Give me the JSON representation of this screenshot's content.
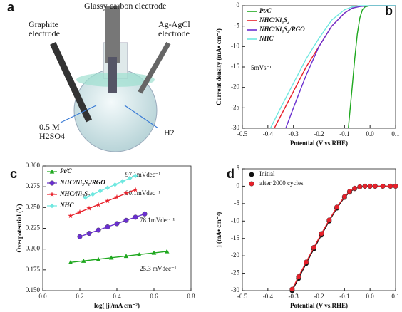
{
  "illustration": {
    "label": "a",
    "top_label": "Glassy carbon electrode",
    "left_label": "Graphite electrode",
    "right_label": "Ag-AgCl electrode",
    "solution_label": "0.5 M H2SO4",
    "gas_label": "H2"
  },
  "chart_data": [
    {
      "type": "line",
      "label": "b",
      "xlabel": "Potential (V vs.RHE)",
      "ylabel": "Current density (mA• cm⁻²)",
      "xlim": [
        -0.5,
        0.1
      ],
      "xticks": [
        -0.5,
        -0.4,
        -0.3,
        -0.2,
        -0.1,
        {
          "value": 0,
          "label": "0.0"
        },
        0.1
      ],
      "ylim": [
        -30,
        0
      ],
      "yticks": [
        -30,
        -25,
        -20,
        -15,
        -10,
        -5,
        0
      ],
      "annotations": [
        "5mVs⁻¹"
      ],
      "series": [
        {
          "name": "Pt/C",
          "color": "#1fa81f",
          "x": [
            -0.085,
            -0.07,
            -0.06,
            -0.05,
            -0.04,
            -0.03,
            -0.02,
            0,
            0.05,
            0.1
          ],
          "values": [
            -30,
            -20,
            -13,
            -7,
            -3,
            -1,
            -0.3,
            0,
            0,
            0
          ]
        },
        {
          "name": "NHC/Ni₃S₂",
          "color": "#e8202a",
          "x": [
            -0.375,
            -0.3,
            -0.25,
            -0.2,
            -0.15,
            -0.1,
            -0.07,
            -0.04,
            0,
            0.05,
            0.1
          ],
          "values": [
            -30,
            -21,
            -15,
            -10,
            -5,
            -1.8,
            -0.6,
            -0.1,
            0,
            0,
            0
          ]
        },
        {
          "name": "NHC/Ni₃S₂/RGO",
          "color": "#6a2fd0",
          "x": [
            -0.33,
            -0.3,
            -0.25,
            -0.2,
            -0.15,
            -0.1,
            -0.07,
            -0.04,
            0,
            0.05,
            0.1
          ],
          "values": [
            -30,
            -25,
            -17,
            -10,
            -5,
            -1.8,
            -0.6,
            -0.2,
            0,
            0,
            0
          ]
        },
        {
          "name": "NHC",
          "color": "#6fe8e0",
          "x": [
            -0.39,
            -0.35,
            -0.3,
            -0.25,
            -0.2,
            -0.15,
            -0.1,
            -0.07,
            -0.04,
            0,
            0.05,
            0.1
          ],
          "values": [
            -30,
            -25,
            -19,
            -13,
            -8,
            -3.5,
            -1,
            -0.3,
            0,
            0,
            0,
            0
          ]
        }
      ]
    },
    {
      "type": "scatter",
      "label": "c",
      "xlabel": "log( |j|/mA cm⁻²)",
      "ylabel": "Overpotential (V)",
      "fit_line": true,
      "xlim": [
        0,
        0.8
      ],
      "xticks": [
        {
          "value": 0,
          "label": "0.0"
        },
        0.2,
        0.4,
        0.6,
        0.8
      ],
      "ylim": [
        0.15,
        0.3
      ],
      "yticks": [
        {
          "value": 0.15,
          "label": "0.150"
        },
        0.175,
        {
          "value": 0.2,
          "label": "0.200"
        },
        0.225,
        {
          "value": 0.25,
          "label": "0.250"
        },
        0.275,
        {
          "value": 0.3,
          "label": "0.300"
        }
      ],
      "annotations": [
        "97.1mVdec⁻¹",
        "90.1mVdec⁻¹",
        "78.1mVdec⁻¹",
        "25.3 mVdec⁻¹"
      ],
      "series": [
        {
          "name": "Pt/C",
          "color": "#1fa81f",
          "marker": "triangle",
          "x": [
            0.15,
            0.22,
            0.3,
            0.37,
            0.45,
            0.52,
            0.6,
            0.67
          ],
          "values": [
            0.184,
            0.1858,
            0.1878,
            0.1896,
            0.1916,
            0.1934,
            0.1954,
            0.1972
          ]
        },
        {
          "name": "NHC/Ni₃S₂/RGO",
          "color": "#6a2fd0",
          "marker": "circle",
          "x": [
            0.2,
            0.25,
            0.3,
            0.35,
            0.4,
            0.45,
            0.5,
            0.55
          ],
          "values": [
            0.215,
            0.2189,
            0.2228,
            0.2267,
            0.2306,
            0.2346,
            0.2384,
            0.2423
          ]
        },
        {
          "name": "NHC/Ni₃S₂",
          "color": "#e8202a",
          "marker": "star",
          "x": [
            0.15,
            0.2,
            0.25,
            0.3,
            0.35,
            0.4,
            0.45,
            0.5
          ],
          "values": [
            0.24,
            0.2445,
            0.249,
            0.2535,
            0.258,
            0.2625,
            0.2671,
            0.2715
          ]
        },
        {
          "name": "NHC",
          "color": "#6fe8e0",
          "marker": "diamond",
          "x": [
            0.23,
            0.27,
            0.31,
            0.35,
            0.39,
            0.43,
            0.47,
            0.5
          ],
          "values": [
            0.262,
            0.2659,
            0.2698,
            0.2737,
            0.2775,
            0.2814,
            0.2853,
            0.2882
          ]
        }
      ]
    },
    {
      "type": "line",
      "label": "d",
      "xlabel": "Potential (V vs.RHE)",
      "ylabel": "j (mA• cm⁻²)",
      "xlim": [
        -0.5,
        0.1
      ],
      "xticks": [
        -0.5,
        -0.4,
        -0.3,
        -0.2,
        -0.1,
        {
          "value": 0,
          "label": "0.0"
        },
        0.1
      ],
      "ylim": [
        -30,
        5
      ],
      "yticks": [
        -30,
        -25,
        -20,
        -15,
        -10,
        -5,
        0,
        5
      ],
      "series": [
        {
          "name": "Initial",
          "color": "#111111",
          "marker": "circle",
          "x": [
            -0.305,
            -0.28,
            -0.25,
            -0.22,
            -0.19,
            -0.16,
            -0.13,
            -0.1,
            -0.08,
            -0.06,
            -0.04,
            -0.02,
            0,
            0.02,
            0.05,
            0.08,
            0.1
          ],
          "values": [
            -30,
            -26.5,
            -22.2,
            -18,
            -14,
            -10,
            -6.3,
            -3.2,
            -1.7,
            -0.7,
            -0.2,
            0,
            0,
            0,
            0,
            0,
            0
          ]
        },
        {
          "name": "after 2000 cycles",
          "color": "#e8202a",
          "marker": "circle",
          "x": [
            -0.305,
            -0.28,
            -0.25,
            -0.22,
            -0.19,
            -0.16,
            -0.13,
            -0.1,
            -0.08,
            -0.06,
            -0.04,
            -0.02,
            0,
            0.02,
            0.05,
            0.08,
            0.1
          ],
          "values": [
            -29.6,
            -26,
            -21.8,
            -17.6,
            -13.6,
            -9.7,
            -6,
            -3,
            -1.5,
            -0.6,
            -0.15,
            0,
            0,
            0,
            0,
            0,
            0
          ]
        }
      ]
    }
  ]
}
